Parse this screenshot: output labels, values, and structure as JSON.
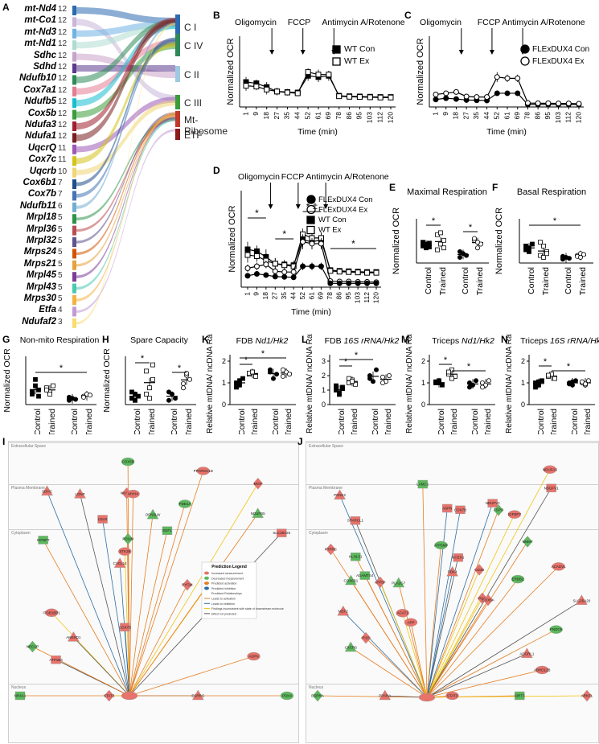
{
  "panels": {
    "A": {
      "label": "A",
      "genes": [
        {
          "name": "mt-Nd4",
          "count": "12",
          "color": "#2d6bb0"
        },
        {
          "name": "mt-Co1",
          "count": "12",
          "color": "#c9b6d8"
        },
        {
          "name": "mt-Nd3",
          "count": "12",
          "color": "#6fb3e3"
        },
        {
          "name": "mt-Nd1",
          "count": "12",
          "color": "#aeddd0"
        },
        {
          "name": "Sdhc",
          "count": "12",
          "color": "#c8a2c8"
        },
        {
          "name": "Sdhd",
          "count": "12",
          "color": "#5b3a8e"
        },
        {
          "name": "Ndufb10",
          "count": "12",
          "color": "#2e8b57"
        },
        {
          "name": "Cox7a1",
          "count": "12",
          "color": "#e57c93"
        },
        {
          "name": "Ndufb5",
          "count": "12",
          "color": "#17becf"
        },
        {
          "name": "Cox5b",
          "count": "12",
          "color": "#3a9d3a"
        },
        {
          "name": "Ndufa3",
          "count": "12",
          "color": "#a11f2d"
        },
        {
          "name": "Ndufa1",
          "count": "12",
          "color": "#7a1f1f"
        },
        {
          "name": "UqcrQ",
          "count": "11",
          "color": "#9b59b6"
        },
        {
          "name": "Cox7c",
          "count": "11",
          "color": "#d4c21a"
        },
        {
          "name": "Uqcrb",
          "count": "10",
          "color": "#f0d675"
        },
        {
          "name": "Cox6b1",
          "count": "7",
          "color": "#1f4e8c"
        },
        {
          "name": "Cox7b",
          "count": "7",
          "color": "#4575b4"
        },
        {
          "name": "Ndufb11",
          "count": "6",
          "color": "#74add1"
        },
        {
          "name": "Mrpl18",
          "count": "5",
          "color": "#2b9348"
        },
        {
          "name": "Mrpl36",
          "count": "5",
          "color": "#bc4b51"
        },
        {
          "name": "Mrpl32",
          "count": "5",
          "color": "#5e548e"
        },
        {
          "name": "Mrps24",
          "count": "5",
          "color": "#d35400"
        },
        {
          "name": "Mrps21",
          "count": "5",
          "color": "#e6a23c"
        },
        {
          "name": "Mrpl45",
          "count": "5",
          "color": "#7d3c98"
        },
        {
          "name": "Mrpl43",
          "count": "5",
          "color": "#48c9b0"
        },
        {
          "name": "Mrps30",
          "count": "5",
          "color": "#f5b041"
        },
        {
          "name": "Etfa",
          "count": "4",
          "color": "#c39bd3"
        },
        {
          "name": "Ndufaf2",
          "count": "3",
          "color": "#f7dc6f"
        }
      ],
      "categories": [
        {
          "name": "C I",
          "color": "#2d6bb0"
        },
        {
          "name": "C IV",
          "color": "#2e8b57"
        },
        {
          "name": "C II",
          "color": "#9ec9e2"
        },
        {
          "name": "C III",
          "color": "#3a9d3a"
        },
        {
          "name": "Mt-Ribosome",
          "color": "#c0392b"
        },
        {
          "name": "ETF",
          "color": "#8b1a1a"
        }
      ]
    },
    "B": {
      "label": "B",
      "ylabel": "Normalized OCR",
      "xlabel": "Time (min)",
      "annotations": [
        "Oligomycin",
        "FCCP",
        "Antimycin A/Rotenone"
      ],
      "legend": [
        {
          "name": "WT Con",
          "marker": "filled-square"
        },
        {
          "name": "WT Ex",
          "marker": "open-square"
        }
      ]
    },
    "C": {
      "label": "C",
      "ylabel": "Normalized OCR",
      "xlabel": "Time (min)",
      "annotations": [
        "Oligomycin",
        "FCCP",
        "Antimycin A/Rotenone"
      ],
      "legend": [
        {
          "name": "FLExDUX4 Con",
          "marker": "filled-circle"
        },
        {
          "name": "FLExDUX4 Ex",
          "marker": "open-circle"
        }
      ]
    },
    "D": {
      "label": "D",
      "ylabel": "Normalized OCR",
      "xlabel": "Time (min)",
      "annotations": [
        "Oligomycin",
        "FCCP",
        "Antimycin A/Rotenone"
      ],
      "sig": [
        "*",
        "*",
        "* ‡",
        "*"
      ],
      "legend": [
        {
          "name": "FLExDUX4 Con",
          "marker": "filled-circle"
        },
        {
          "name": "FLExDUX4 Ex",
          "marker": "open-circle"
        },
        {
          "name": "WT Con",
          "marker": "filled-square"
        },
        {
          "name": "WT Ex",
          "marker": "open-square"
        }
      ]
    },
    "E": {
      "label": "E",
      "title": "Maximal Respiration",
      "ylabel": "Normalized OCR",
      "groups": [
        "Control",
        "Trained",
        "Control",
        "Trained"
      ],
      "sig": [
        "*",
        "*"
      ]
    },
    "F": {
      "label": "F",
      "title": "Basal Respiration",
      "ylabel": "Normalized OCR",
      "groups": [
        "Control",
        "Trained",
        "Control",
        "Trained"
      ],
      "sig": [
        "*"
      ]
    },
    "G": {
      "label": "G",
      "title": "Non-mito Respiration",
      "ylabel": "Normalized OCR",
      "groups": [
        "Control",
        "Trained",
        "Control",
        "Trained"
      ],
      "sig": [
        "*"
      ]
    },
    "H": {
      "label": "H",
      "title": "Spare Capacity",
      "ylabel": "Normalized OCR",
      "groups": [
        "Control",
        "Trained",
        "Control",
        "Trained"
      ],
      "sig": [
        "*",
        "*"
      ]
    },
    "K": {
      "label": "K",
      "title": "FDB Nd1/Hk2",
      "ylabel": "Relative mtDNA/ ncDNA Ratio",
      "groups": [
        "Control",
        "Trained",
        "Control",
        "Trained"
      ],
      "sig": [
        "*",
        "*"
      ],
      "ylim": [
        0,
        2
      ],
      "ticks": [
        "0",
        "1",
        "2"
      ]
    },
    "L": {
      "label": "L",
      "title": "FDB 16S rRNA/Hk2",
      "ylabel": "Relative mtDNA/ ncDNA Ratio",
      "groups": [
        "Control",
        "Trained",
        "Control",
        "Trained"
      ],
      "sig": [
        "*",
        "*"
      ],
      "ylim": [
        0,
        3
      ],
      "ticks": [
        "0",
        "1",
        "2",
        "3"
      ]
    },
    "M": {
      "label": "M",
      "title": "Triceps Nd1/Hk2",
      "ylabel": "Relative mtDNA/ ncDNA Ratio",
      "groups": [
        "Control",
        "Trained",
        "Control",
        "Trained"
      ],
      "sig": [
        "*",
        "*"
      ],
      "ylim": [
        0,
        2
      ],
      "ticks": [
        "0",
        "1",
        "2"
      ]
    },
    "N": {
      "label": "N",
      "title": "Triceps 16S rRNA/Hk2",
      "ylabel": "Relative mtDNA/ ncDNA Ratio",
      "groups": [
        "Control",
        "Trained",
        "Control",
        "Trained"
      ],
      "sig": [
        "*",
        "*"
      ],
      "ylim": [
        0,
        2
      ],
      "ticks": [
        "0",
        "1",
        "2"
      ]
    },
    "I": {
      "label": "I",
      "zones": [
        "Extracellular Space",
        "Plasma Membrane",
        "Cytoplasm",
        "Nucleus"
      ],
      "legend_title": "Prediction Legend",
      "legend_items": [
        "Increased measurement",
        "Decreased measurement",
        "Predicted activation",
        "Predicted inhibition",
        "Predicted Relationships",
        "Leads to activation",
        "Leads to inhibition",
        "Findings inconsistent with state of downstream molecule",
        "Effect not predicted"
      ],
      "nodes": [
        "ASPN",
        "IGFBP7",
        "MGP",
        "CXCL14",
        "PDE1A",
        "ATP1B3",
        "WASF2",
        "OPN3LW",
        "ITGB1BP1",
        "LDLR",
        "NECAP",
        "ANKRD1",
        "MYH4",
        "EEF1",
        "ATP5",
        "SDHC",
        "COX5B",
        "SLC25A25",
        "PYGM",
        "NDUFB5",
        "STK39",
        "COX7B",
        "PDLIM",
        "LONP",
        "PPARGC1B",
        "NR4A1",
        "STAT3",
        "ESRRG",
        "PDK4"
      ]
    },
    "J": {
      "label": "J",
      "zones": [
        "Extracellular Space",
        "Plasma Membrane",
        "Cytoplasm",
        "Nucleus"
      ],
      "nodes": [
        "ABHD12B",
        "ADAMTS4",
        "PI16",
        "PENK2",
        "FNDC5",
        "SPARCL1",
        "PI15",
        "PLA2G7",
        "IGFBP7",
        "ASPN",
        "TSPO",
        "ADGRL1",
        "APP",
        "LAMC1",
        "CD36",
        "MEF2",
        "ERBB2",
        "NCEH1",
        "PTPRC",
        "CXCR6",
        "NDUFA3",
        "COX7B",
        "NNMT",
        "SLC25A20",
        "ACADVL",
        "KLHL31",
        "ATP5F",
        "PDK4",
        "ATP5MF",
        "NDUFV1",
        "COX5A",
        "COX6B1",
        "ACAT1",
        "NDUFV2",
        "ESRRA",
        "PPARA",
        "STAT3",
        "SIRT3",
        "ARNTL"
      ]
    }
  }
}
